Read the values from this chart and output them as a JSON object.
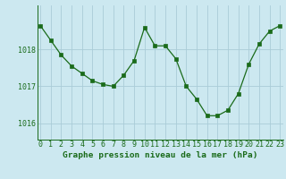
{
  "x": [
    0,
    1,
    2,
    3,
    4,
    5,
    6,
    7,
    8,
    9,
    10,
    11,
    12,
    13,
    14,
    15,
    16,
    17,
    18,
    19,
    20,
    21,
    22,
    23
  ],
  "y": [
    1018.65,
    1018.25,
    1017.85,
    1017.55,
    1017.35,
    1017.15,
    1017.05,
    1017.0,
    1017.3,
    1017.7,
    1018.6,
    1018.1,
    1018.1,
    1017.75,
    1017.0,
    1016.65,
    1016.2,
    1016.2,
    1016.35,
    1016.8,
    1017.6,
    1018.15,
    1018.5,
    1018.65
  ],
  "line_color": "#1a6b1a",
  "marker": "s",
  "marker_size": 2.2,
  "bg_color": "#cce8f0",
  "grid_color": "#aaccd8",
  "axis_color": "#1a6b1a",
  "ytick_values": [
    1016,
    1017,
    1018
  ],
  "ylim": [
    1015.55,
    1019.2
  ],
  "xlim": [
    -0.3,
    23.3
  ],
  "xlabel": "Graphe pression niveau de la mer (hPa)",
  "xlabel_fontsize": 6.8,
  "tick_fontsize": 6.0
}
